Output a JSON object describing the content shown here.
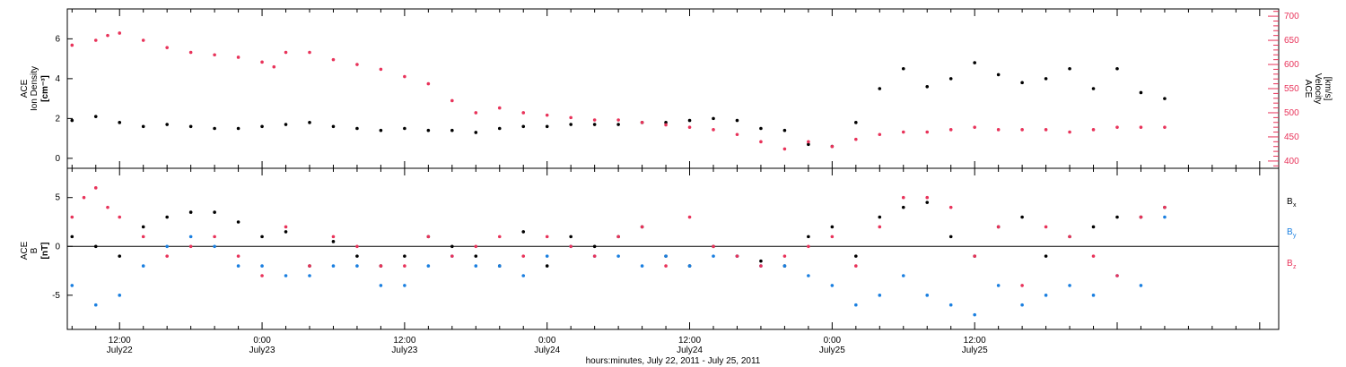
{
  "colors": {
    "density": "#000000",
    "velocity": "#e8335a",
    "bx": "#000000",
    "by": "#1a7fe0",
    "bz": "#e8335a",
    "axis": "#000000"
  },
  "xaxis": {
    "label": "hours:minutes, July 22, 2011 - July 25, 2011",
    "range_hours": [
      7.6,
      109.6
    ],
    "ticks": [
      {
        "h": 12,
        "time": "12:00",
        "date": "July22"
      },
      {
        "h": 24,
        "time": "0:00",
        "date": "July23"
      },
      {
        "h": 36,
        "time": "12:00",
        "date": "July23"
      },
      {
        "h": 48,
        "time": "0:00",
        "date": "July24"
      },
      {
        "h": 60,
        "time": "12:00",
        "date": "July24"
      },
      {
        "h": 72,
        "time": "0:00",
        "date": "July25"
      },
      {
        "h": 84,
        "time": "12:00",
        "date": "July25"
      }
    ]
  },
  "panel_top": {
    "left_label_line1": "ACE",
    "left_label_line2": "Ion Density",
    "left_label_unit": "[cm⁻³]",
    "right_label_line1": "ACE",
    "right_label_line2": "Velocity",
    "right_label_unit": "[km/s]",
    "left_ticks": [
      "0",
      "2",
      "4",
      "6"
    ],
    "right_ticks": [
      "400",
      "450",
      "500",
      "550",
      "600",
      "650",
      "700"
    ]
  },
  "panel_bottom": {
    "left_label_line1": "ACE",
    "left_label_line2": "B",
    "left_label_unit": "[nT]",
    "left_ticks": [
      "-5",
      "0",
      "5"
    ],
    "legend": [
      {
        "label": "B",
        "sub": "x",
        "key": "bx"
      },
      {
        "label": "B",
        "sub": "y",
        "key": "by"
      },
      {
        "label": "B",
        "sub": "z",
        "key": "bz"
      }
    ]
  },
  "chart_data": [
    {
      "type": "scatter",
      "xlim": [
        7.6,
        109.6
      ],
      "ylim": [
        -0.5,
        7.5
      ],
      "y2lim": [
        385,
        715
      ],
      "series": [
        {
          "axis": "left",
          "key": "density",
          "x": [
            8,
            10,
            12,
            14,
            16,
            18,
            20,
            22,
            24,
            26,
            28,
            30,
            32,
            34,
            36,
            38,
            40,
            42,
            44,
            46,
            48,
            50,
            52,
            54,
            56,
            58,
            60,
            62,
            64,
            66,
            68,
            70,
            72,
            74,
            76,
            78,
            80,
            82,
            84,
            86,
            88,
            90,
            92,
            94,
            96,
            98,
            100
          ],
          "y": [
            1.9,
            2.1,
            1.8,
            1.6,
            1.7,
            1.6,
            1.5,
            1.5,
            1.6,
            1.7,
            1.8,
            1.6,
            1.5,
            1.4,
            1.5,
            1.4,
            1.4,
            1.3,
            1.5,
            1.6,
            1.6,
            1.7,
            1.7,
            1.7,
            1.8,
            1.8,
            1.9,
            2.0,
            1.9,
            1.5,
            1.4,
            0.7,
            0.6,
            1.8,
            3.5,
            4.5,
            3.6,
            4.0,
            4.8,
            4.2,
            3.8,
            4.0,
            4.5,
            3.5,
            4.5,
            3.3,
            3.0
          ]
        },
        {
          "axis": "right",
          "key": "velocity",
          "x": [
            8,
            10,
            11,
            12,
            14,
            16,
            18,
            20,
            22,
            24,
            25,
            26,
            28,
            30,
            32,
            34,
            36,
            38,
            40,
            42,
            44,
            46,
            48,
            50,
            52,
            54,
            56,
            58,
            60,
            62,
            64,
            66,
            68,
            70,
            72,
            74,
            76,
            78,
            80,
            82,
            84,
            86,
            88,
            90,
            92,
            94,
            96,
            98,
            100
          ],
          "y": [
            640,
            650,
            660,
            665,
            650,
            635,
            625,
            620,
            615,
            605,
            595,
            625,
            625,
            610,
            600,
            590,
            575,
            560,
            525,
            500,
            510,
            500,
            495,
            490,
            485,
            485,
            480,
            475,
            470,
            465,
            455,
            440,
            425,
            440,
            430,
            445,
            455,
            460,
            460,
            465,
            470,
            465,
            465,
            465,
            460,
            465,
            470,
            470,
            470
          ]
        }
      ]
    },
    {
      "type": "scatter",
      "xlim": [
        7.6,
        109.6
      ],
      "ylim": [
        -8.5,
        8.0
      ],
      "series": [
        {
          "key": "bx",
          "x": [
            8,
            10,
            12,
            14,
            16,
            18,
            20,
            22,
            24,
            26,
            28,
            30,
            32,
            34,
            36,
            38,
            40,
            42,
            44,
            46,
            48,
            50,
            52,
            54,
            56,
            58,
            60,
            62,
            64,
            66,
            68,
            70,
            72,
            74,
            76,
            78,
            80,
            82,
            84,
            86,
            88,
            90,
            92,
            94,
            96,
            98,
            100
          ],
          "y": [
            1,
            0,
            -1,
            2,
            3,
            3.5,
            3.5,
            2.5,
            1,
            1.5,
            -2,
            0.5,
            -1,
            -2,
            -1,
            1,
            0,
            -1,
            -2,
            1.5,
            -2,
            1,
            0,
            1,
            2,
            -1,
            -2,
            0,
            -1,
            -1.5,
            -2,
            1,
            2,
            -1,
            3,
            4,
            4.5,
            1,
            -1,
            2,
            3,
            -1,
            1,
            2,
            3,
            3,
            4
          ]
        },
        {
          "key": "by",
          "x": [
            8,
            10,
            12,
            14,
            16,
            18,
            20,
            22,
            24,
            26,
            28,
            30,
            32,
            34,
            36,
            38,
            40,
            42,
            44,
            46,
            48,
            50,
            52,
            54,
            56,
            58,
            60,
            62,
            64,
            66,
            68,
            70,
            72,
            74,
            76,
            78,
            80,
            82,
            84,
            86,
            88,
            90,
            92,
            94,
            96,
            98,
            100
          ],
          "y": [
            -4,
            -6,
            -5,
            -2,
            0,
            1,
            0,
            -2,
            -2,
            -3,
            -3,
            -2,
            -2,
            -4,
            -4,
            -2,
            -1,
            -2,
            -2,
            -3,
            -1,
            0,
            -1,
            -1,
            -2,
            -1,
            -2,
            -1,
            -1,
            -2,
            -2,
            -3,
            -4,
            -6,
            -5,
            -3,
            -5,
            -6,
            -7,
            -4,
            -6,
            -5,
            -4,
            -5,
            -3,
            -4,
            3
          ]
        },
        {
          "key": "bz",
          "x": [
            8,
            9,
            10,
            11,
            12,
            14,
            16,
            18,
            20,
            22,
            24,
            26,
            28,
            30,
            32,
            34,
            36,
            38,
            40,
            42,
            44,
            46,
            48,
            50,
            52,
            54,
            56,
            58,
            60,
            62,
            64,
            66,
            68,
            70,
            72,
            74,
            76,
            78,
            80,
            82,
            84,
            86,
            88,
            90,
            92,
            94,
            96,
            98,
            100
          ],
          "y": [
            3,
            5,
            6,
            4,
            3,
            1,
            -1,
            0,
            1,
            -1,
            -3,
            2,
            -2,
            1,
            0,
            -2,
            -2,
            1,
            -1,
            0,
            1,
            -1,
            1,
            0,
            -1,
            1,
            2,
            -2,
            3,
            0,
            -1,
            -2,
            -1,
            0,
            1,
            -2,
            2,
            5,
            5,
            4,
            -1,
            2,
            -4,
            2,
            1,
            -1,
            -3,
            3,
            4
          ]
        }
      ]
    }
  ]
}
